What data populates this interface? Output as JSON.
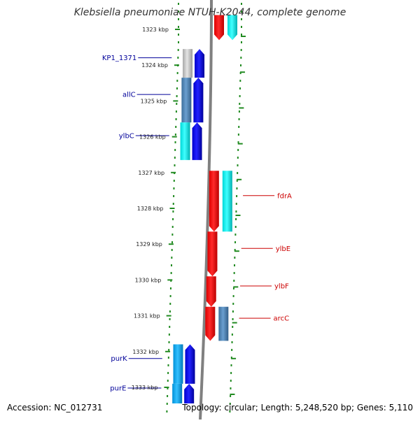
{
  "title": "Klebsiella pneumoniae NTUH-K2044, complete genome",
  "footer": {
    "accession": "Accession: NC_012731",
    "summary": "Topology: circular; Length: 5,248,520 bp; Genes: 5,110"
  },
  "colors": {
    "forward_label": "#cc0000",
    "reverse_label": "#000099",
    "ruler_dots": "#228b22",
    "backbone": "#808080"
  },
  "kbp_labels": [
    "1323 kbp",
    "1324 kbp",
    "1325 kbp",
    "1326 kbp",
    "1327 kbp",
    "1328 kbp",
    "1329 kbp",
    "1330 kbp",
    "1331 kbp",
    "1332 kbp",
    "1333 kbp"
  ],
  "genes": [
    {
      "name": "",
      "strand": "+",
      "start": 1322.6,
      "end": 1323.3,
      "color": "red"
    },
    {
      "name": "",
      "strand": "+",
      "start": 1322.6,
      "end": 1323.3,
      "color": "cyan"
    },
    {
      "name": "KP1_1371",
      "strand": "-",
      "start": 1323.55,
      "end": 1324.35,
      "color": "silver"
    },
    {
      "name": "allC",
      "strand": "-",
      "start": 1324.35,
      "end": 1325.6,
      "color": "steelblue"
    },
    {
      "name": "ylbC",
      "strand": "-",
      "start": 1325.6,
      "end": 1326.65,
      "color": "cyan"
    },
    {
      "name": "fdrA",
      "strand": "+",
      "start": 1326.95,
      "end": 1328.65,
      "color": "cyan"
    },
    {
      "name": "ylbE",
      "strand": "+",
      "start": 1328.65,
      "end": 1329.9,
      "color": "red"
    },
    {
      "name": "ylbF",
      "strand": "+",
      "start": 1329.9,
      "end": 1330.75,
      "color": "red"
    },
    {
      "name": "arcC",
      "strand": "+",
      "start": 1330.75,
      "end": 1331.7,
      "color": "steelblue"
    },
    {
      "name": "purK",
      "strand": "-",
      "start": 1331.8,
      "end": 1332.9,
      "color": "deepskyblue"
    },
    {
      "name": "purE",
      "strand": "-",
      "start": 1332.9,
      "end": 1333.45,
      "color": "deepskyblue"
    }
  ]
}
